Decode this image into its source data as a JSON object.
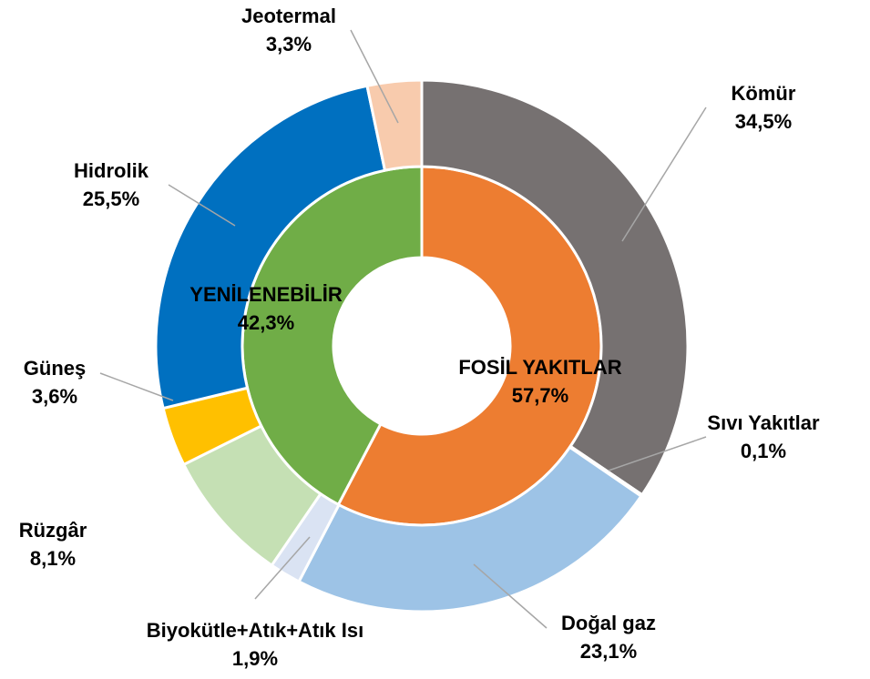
{
  "chart_data": {
    "type": "nested_donut",
    "rings": [
      {
        "categories": [
          "FOSİL YAKITLAR",
          "YENİLENEBİLİR"
        ],
        "values": [
          57.7,
          42.3
        ],
        "value_labels": [
          "57,7%",
          "42,3%"
        ],
        "colors": [
          "#ED7D31",
          "#70AD47"
        ]
      },
      {
        "categories": [
          "Kömür",
          "Sıvı Yakıtlar",
          "Doğal gaz",
          "Biyokütle+Atık+Atık Isı",
          "Rüzgâr",
          "Güneş",
          "Hidrolik",
          "Jeotermal"
        ],
        "values": [
          34.5,
          0.1,
          23.1,
          1.9,
          8.1,
          3.6,
          25.5,
          3.3
        ],
        "value_labels": [
          "34,5%",
          "0,1%",
          "23,1%",
          "1,9%",
          "8,1%",
          "3,6%",
          "25,5%",
          "3,3%"
        ],
        "colors": [
          "#767171",
          "#A6A6A6",
          "#9DC3E6",
          "#DAE3F3",
          "#C5E0B4",
          "#FFC000",
          "#0070C0",
          "#F8CBAD"
        ]
      }
    ]
  }
}
